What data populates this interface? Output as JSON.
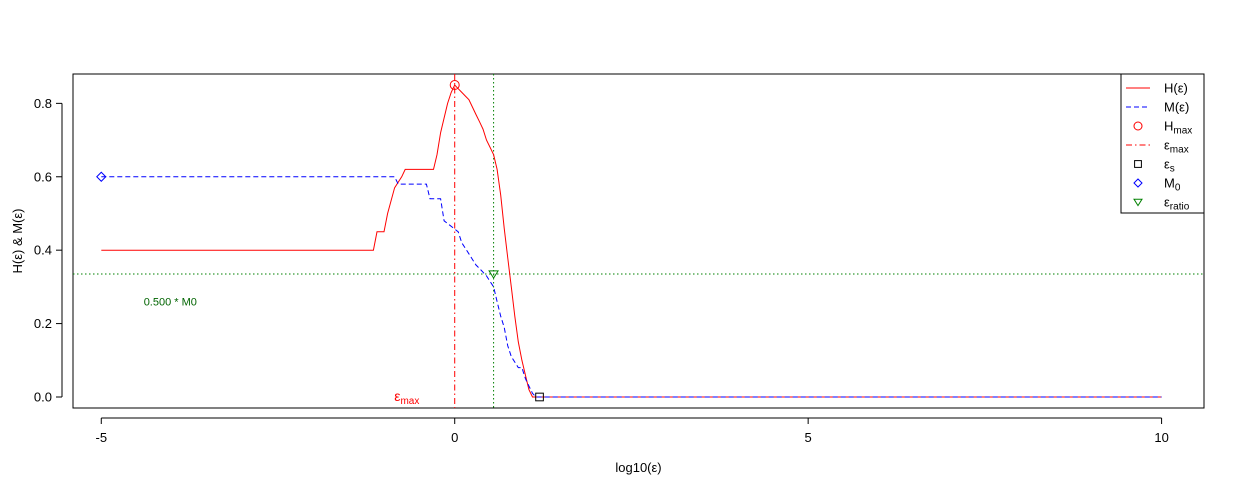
{
  "chart_data": {
    "type": "line",
    "title": "",
    "xlabel": "log10(ε)",
    "ylabel": "H(ε) & M(ε)",
    "xlim": [
      -5.4,
      10.6
    ],
    "ylim": [
      -0.03,
      0.88
    ],
    "xticks": [
      -5,
      0,
      5,
      10
    ],
    "yticks": [
      0.0,
      0.2,
      0.4,
      0.6,
      0.8
    ],
    "xtick_labels": [
      "-5",
      "0",
      "5",
      "10"
    ],
    "ytick_labels": [
      "0.0",
      "0.2",
      "0.4",
      "0.6",
      "0.8"
    ],
    "legend_position": "top-right",
    "colors": {
      "H": "#ff0000",
      "M": "#0000ff",
      "ratio": "#008000",
      "eps_s": "#000000",
      "frame": "#000000"
    },
    "series": [
      {
        "name": "H(ε)",
        "style": "solid",
        "color": "#ff0000",
        "x": [
          -5,
          -1.15,
          -1.1,
          -1.0,
          -0.95,
          -0.85,
          -0.75,
          -0.7,
          -0.65,
          -0.3,
          -0.25,
          -0.2,
          -0.15,
          -0.1,
          -0.05,
          0.0,
          0.05,
          0.1,
          0.15,
          0.2,
          0.25,
          0.3,
          0.35,
          0.4,
          0.45,
          0.5,
          0.55,
          0.6,
          0.65,
          0.7,
          0.75,
          0.8,
          0.85,
          0.9,
          0.95,
          1.0,
          1.05,
          1.1,
          1.15,
          1.2,
          10
        ],
        "y": [
          0.4,
          0.4,
          0.45,
          0.45,
          0.5,
          0.57,
          0.6,
          0.62,
          0.62,
          0.62,
          0.66,
          0.72,
          0.76,
          0.8,
          0.83,
          0.85,
          0.84,
          0.83,
          0.82,
          0.81,
          0.79,
          0.77,
          0.75,
          0.73,
          0.7,
          0.68,
          0.66,
          0.62,
          0.55,
          0.46,
          0.38,
          0.3,
          0.22,
          0.15,
          0.1,
          0.06,
          0.02,
          0.0,
          0.0,
          0.0,
          0.0
        ]
      },
      {
        "name": "M(ε)",
        "style": "dashed",
        "color": "#0000ff",
        "x": [
          -5,
          -0.85,
          -0.8,
          -0.4,
          -0.35,
          -0.2,
          -0.15,
          0.05,
          0.1,
          0.2,
          0.3,
          0.35,
          0.45,
          0.55,
          0.6,
          0.65,
          0.7,
          0.75,
          0.8,
          0.9,
          0.95,
          1.0,
          1.05,
          1.1,
          1.15,
          1.2,
          10
        ],
        "y": [
          0.6,
          0.6,
          0.58,
          0.58,
          0.54,
          0.54,
          0.48,
          0.45,
          0.42,
          0.39,
          0.36,
          0.35,
          0.33,
          0.3,
          0.26,
          0.22,
          0.19,
          0.14,
          0.11,
          0.08,
          0.08,
          0.05,
          0.03,
          0.01,
          0.0,
          0.0,
          0.0
        ]
      }
    ],
    "markers": [
      {
        "name": "Hmax",
        "shape": "circle",
        "color": "#ff0000",
        "x": 0.0,
        "y": 0.85
      },
      {
        "name": "ε_s",
        "shape": "square",
        "color": "#000000",
        "x": 1.2,
        "y": 0.0
      },
      {
        "name": "M0",
        "shape": "diamond",
        "color": "#0000ff",
        "x": -5,
        "y": 0.6
      },
      {
        "name": "ε_ratio",
        "shape": "triangle-down",
        "color": "#008000",
        "x": 0.55,
        "y": 0.335
      }
    ],
    "reference_lines": [
      {
        "kind": "vertical",
        "x": 0.0,
        "style": "dashdot",
        "color": "#ff0000"
      },
      {
        "kind": "vertical",
        "x": 0.55,
        "style": "dotted",
        "color": "#008000"
      },
      {
        "kind": "horizontal",
        "y": 0.335,
        "style": "dotted",
        "color": "#008000"
      }
    ],
    "annotations": [
      {
        "text": "0.500 * M0",
        "color": "#006400",
        "x": -4.4,
        "y": 0.26
      },
      {
        "text": "ε",
        "subscript": "max",
        "color": "#ff0000",
        "x": -0.5,
        "y": 0.0
      }
    ],
    "legend": [
      {
        "label": "H(ε)",
        "sub": "",
        "symbol": "line-solid",
        "color": "#ff0000"
      },
      {
        "label": "M(ε)",
        "sub": "",
        "symbol": "line-dashed",
        "color": "#0000ff"
      },
      {
        "label": "H",
        "sub": "max",
        "symbol": "circle",
        "color": "#ff0000"
      },
      {
        "label": "ε",
        "sub": "max",
        "symbol": "line-dashdot",
        "color": "#ff0000"
      },
      {
        "label": "ε",
        "sub": "s",
        "symbol": "square",
        "color": "#000000"
      },
      {
        "label": "M",
        "sub": "0",
        "symbol": "diamond",
        "color": "#0000ff"
      },
      {
        "label": "ε",
        "sub": "ratio",
        "symbol": "triangle-down",
        "color": "#008000"
      }
    ]
  }
}
